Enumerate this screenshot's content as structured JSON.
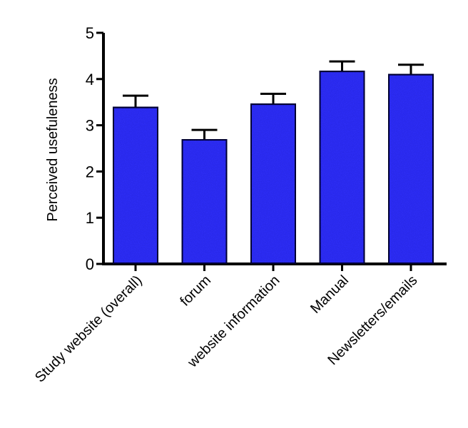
{
  "chart_data": {
    "type": "bar",
    "title": "",
    "xlabel": "",
    "ylabel": "Perceived usefuleness",
    "ylim": [
      0,
      5
    ],
    "yticks": [
      "0",
      "1",
      "2",
      "3",
      "4",
      "5"
    ],
    "categories": [
      "Study website (overall)",
      "forum",
      "website information",
      "Manual",
      "Newsletters/emails"
    ],
    "values": [
      3.4,
      2.7,
      3.47,
      4.18,
      4.11
    ],
    "errors": [
      0.24,
      0.2,
      0.21,
      0.2,
      0.2
    ],
    "bar_color": "#3333ff",
    "edge_color": "#000000",
    "grid": false,
    "legend": "none"
  }
}
